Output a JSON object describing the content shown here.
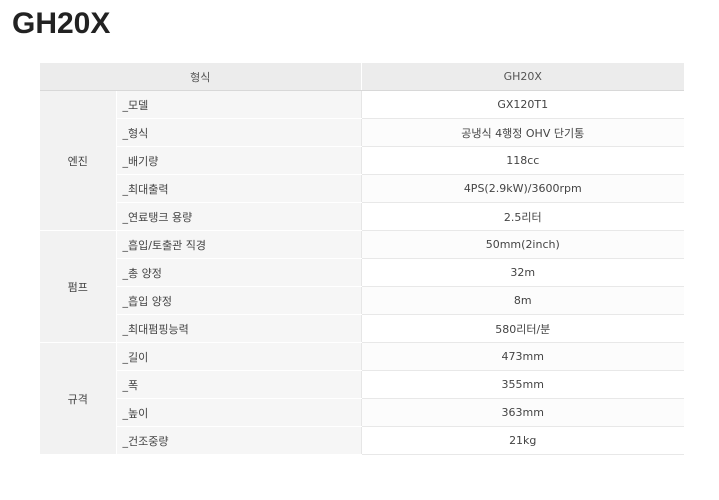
{
  "title": "GH20X",
  "header": {
    "type_label": "형식",
    "model_label": "GH20X"
  },
  "groups": [
    {
      "name": "엔진",
      "rows": [
        {
          "label": "_모델",
          "value": "GX120T1"
        },
        {
          "label": "_형식",
          "value": "공냉식 4행정 OHV 단기통"
        },
        {
          "label": "_배기량",
          "value": "118cc"
        },
        {
          "label": "_최대출력",
          "value": "4PS(2.9kW)/3600rpm"
        },
        {
          "label": "_연료탱크 용량",
          "value": "2.5리터"
        }
      ]
    },
    {
      "name": "펌프",
      "rows": [
        {
          "label": "_흡입/토출관 직경",
          "value": "50mm(2inch)"
        },
        {
          "label": "_총 양정",
          "value": "32m"
        },
        {
          "label": "_흡입 양정",
          "value": "8m"
        },
        {
          "label": "_최대펌핑능력",
          "value": "580리터/분"
        }
      ]
    },
    {
      "name": "규격",
      "rows": [
        {
          "label": "_길이",
          "value": "473mm"
        },
        {
          "label": "_폭",
          "value": "355mm"
        },
        {
          "label": "_높이",
          "value": "363mm"
        },
        {
          "label": "_건조중량",
          "value": "21kg"
        }
      ]
    }
  ]
}
